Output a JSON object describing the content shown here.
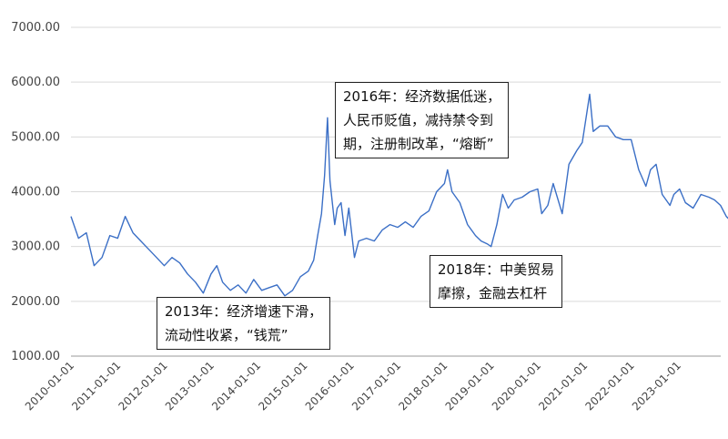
{
  "chart_data": {
    "type": "line",
    "title": "",
    "xlabel": "",
    "ylabel": "",
    "ylim": [
      1000,
      7000
    ],
    "y_ticks": [
      "1000.00",
      "2000.00",
      "3000.00",
      "4000.00",
      "5000.00",
      "6000.00",
      "7000.00"
    ],
    "y_tick_values": [
      1000,
      2000,
      3000,
      4000,
      5000,
      6000,
      7000
    ],
    "x_ticks": [
      "2010-01-01",
      "2011-01-01",
      "2012-01-01",
      "2013-01-01",
      "2014-01-01",
      "2015-01-01",
      "2016-01-01",
      "2017-01-01",
      "2018-01-01",
      "2019-01-01",
      "2020-01-01",
      "2021-01-01",
      "2022-01-01",
      "2023-01-01"
    ],
    "grid": "horizontal",
    "legend": "none",
    "series": [
      {
        "color": "#3b6fc6",
        "x": [
          "2010-01-01",
          "2010-03-01",
          "2010-05-01",
          "2010-07-01",
          "2010-09-01",
          "2010-11-01",
          "2011-01-01",
          "2011-03-01",
          "2011-05-01",
          "2011-07-01",
          "2011-09-01",
          "2011-11-01",
          "2012-01-01",
          "2012-03-01",
          "2012-05-01",
          "2012-07-01",
          "2012-09-01",
          "2012-11-01",
          "2013-01-01",
          "2013-02-15",
          "2013-04-01",
          "2013-06-01",
          "2013-08-01",
          "2013-10-01",
          "2013-12-01",
          "2014-02-01",
          "2014-04-01",
          "2014-06-01",
          "2014-08-01",
          "2014-10-01",
          "2014-12-01",
          "2015-02-01",
          "2015-03-15",
          "2015-04-15",
          "2015-05-15",
          "2015-06-08",
          "2015-07-01",
          "2015-07-20",
          "2015-08-26",
          "2015-09-15",
          "2015-10-15",
          "2015-11-15",
          "2015-12-15",
          "2016-01-28",
          "2016-03-01",
          "2016-05-01",
          "2016-07-01",
          "2016-09-01",
          "2016-11-01",
          "2017-01-01",
          "2017-03-01",
          "2017-05-01",
          "2017-07-01",
          "2017-09-01",
          "2017-11-01",
          "2018-01-01",
          "2018-01-25",
          "2018-03-01",
          "2018-05-01",
          "2018-07-01",
          "2018-09-01",
          "2018-10-15",
          "2018-12-01",
          "2019-01-01",
          "2019-02-15",
          "2019-04-01",
          "2019-05-15",
          "2019-07-01",
          "2019-09-01",
          "2019-11-01",
          "2020-01-01",
          "2020-02-01",
          "2020-03-20",
          "2020-05-01",
          "2020-07-10",
          "2020-09-01",
          "2020-11-01",
          "2020-12-15",
          "2021-02-10",
          "2021-03-10",
          "2021-05-01",
          "2021-07-01",
          "2021-09-01",
          "2021-11-01",
          "2022-01-01",
          "2022-03-01",
          "2022-04-26",
          "2022-06-01",
          "2022-07-15",
          "2022-09-01",
          "2022-10-31",
          "2022-12-01",
          "2023-01-15",
          "2023-03-01",
          "2023-05-01",
          "2023-07-01",
          "2023-09-01",
          "2023-10-15",
          "2023-12-01",
          "2024-01-15",
          "2024-02-05"
        ],
        "values": [
          3550,
          3150,
          3250,
          2650,
          2800,
          3200,
          3150,
          3550,
          3250,
          3100,
          2950,
          2800,
          2650,
          2800,
          2700,
          2500,
          2350,
          2150,
          2500,
          2650,
          2350,
          2200,
          2300,
          2150,
          2400,
          2200,
          2250,
          2300,
          2100,
          2200,
          2450,
          2550,
          2750,
          3200,
          3600,
          4300,
          5350,
          4200,
          3400,
          3700,
          3800,
          3200,
          3700,
          2800,
          3100,
          3150,
          3100,
          3300,
          3400,
          3350,
          3450,
          3350,
          3550,
          3650,
          4000,
          4150,
          4400,
          4000,
          3800,
          3400,
          3200,
          3100,
          3050,
          3000,
          3400,
          3950,
          3700,
          3850,
          3900,
          4000,
          4050,
          3600,
          3750,
          4150,
          3600,
          4500,
          4750,
          4900,
          5780,
          5100,
          5200,
          5200,
          5000,
          4950,
          4950,
          4400,
          4100,
          4400,
          4500,
          3950,
          3750,
          3950,
          4050,
          3800,
          3700,
          3950,
          3900,
          3850,
          3750,
          3550,
          3500
        ]
      }
    ],
    "annotations": [
      {
        "lines": [
          "2016年：经济数据低迷，",
          "人民币贬值，减持禁令到",
          "期，注册制改革，“熔断”"
        ]
      },
      {
        "lines": [
          "2013年：经济增速下滑，",
          "流动性收紧，“钱荒”"
        ]
      },
      {
        "lines": [
          "2018年：中美贸易",
          "摩擦，金融去杠杆"
        ]
      }
    ]
  }
}
